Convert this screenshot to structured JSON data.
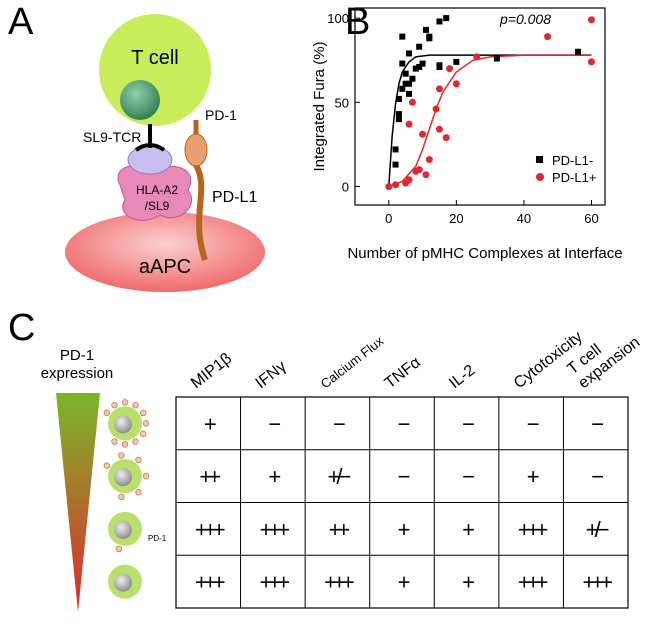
{
  "panels": {
    "a": "A",
    "b": "B",
    "c": "C"
  },
  "diagram": {
    "t_cell": "T cell",
    "tcr": "SL9-TCR",
    "pd1": "PD-1",
    "hla": [
      "HLA-A2",
      "/SL9"
    ],
    "pdl1": "PD-L1",
    "apc": "aAPC"
  },
  "chart_data": {
    "type": "scatter",
    "xlabel": "Number of pMHC Complexes at Interface",
    "ylabel": "Integrated Fura (%)",
    "annotation": "p=0.008",
    "xlim": [
      -10,
      64
    ],
    "ylim": [
      -11,
      106
    ],
    "xticks": [
      0,
      20,
      40,
      60
    ],
    "yticks": [
      0,
      50,
      100
    ],
    "legend": "lower right",
    "series": [
      {
        "name": "PD-L1-",
        "color": "#000000",
        "marker": "square",
        "x": [
          2,
          2,
          3,
          3,
          3,
          4,
          4,
          4,
          5,
          5,
          6,
          6,
          6,
          7,
          8,
          9,
          9,
          10,
          11,
          12,
          12,
          15,
          15,
          15,
          17,
          20,
          32,
          56
        ],
        "values": [
          13,
          22,
          52,
          43,
          40,
          89,
          73,
          58,
          67,
          61,
          55,
          79,
          61,
          64,
          70,
          83,
          71,
          73,
          93,
          88,
          89,
          72,
          98,
          71,
          100,
          74,
          76,
          80
        ]
      },
      {
        "name": "PD-L1+",
        "color": "#e0282e",
        "marker": "circle",
        "x": [
          0,
          2,
          5,
          6,
          8,
          9,
          11,
          12,
          6,
          7,
          10,
          14,
          15,
          17,
          15,
          18,
          20,
          26,
          60,
          60,
          47
        ],
        "values": [
          0,
          1,
          2,
          4,
          9,
          10,
          7,
          16,
          37,
          50,
          31,
          46,
          34,
          29,
          58,
          70,
          61,
          77,
          99,
          74,
          89
        ]
      }
    ],
    "fits": [
      {
        "color": "#000000",
        "x": [
          0,
          1,
          2,
          3,
          4,
          6,
          8,
          12,
          20,
          40,
          60
        ],
        "values": [
          0,
          30,
          49,
          61,
          68,
          74,
          77,
          78,
          78,
          78,
          78
        ]
      },
      {
        "color": "#e0282e",
        "x": [
          0,
          4,
          8,
          10,
          12,
          14,
          16,
          20,
          25,
          30,
          40,
          60
        ],
        "values": [
          0,
          3,
          12,
          22,
          34,
          46,
          56,
          68,
          75,
          77,
          78,
          78
        ]
      }
    ]
  },
  "table": {
    "expression_label": [
      "PD-1",
      "expression"
    ],
    "cell_label": "PD-1",
    "columns": [
      "MIP1β",
      "IFNγ",
      "Calcium Flux",
      "TNFα",
      "IL-2",
      "Cytotoxicity",
      [
        "T cell",
        "expansion"
      ]
    ],
    "rows": [
      [
        "+",
        "−",
        "−",
        "−",
        "−",
        "−",
        "−"
      ],
      [
        "++",
        "+",
        "+/−",
        "−",
        "−",
        "+",
        "−"
      ],
      [
        "+++",
        "+++",
        "++",
        "+",
        "+",
        "+++",
        "+/−"
      ],
      [
        "+++",
        "+++",
        "+++",
        "+",
        "+",
        "+++",
        "+++"
      ]
    ]
  }
}
